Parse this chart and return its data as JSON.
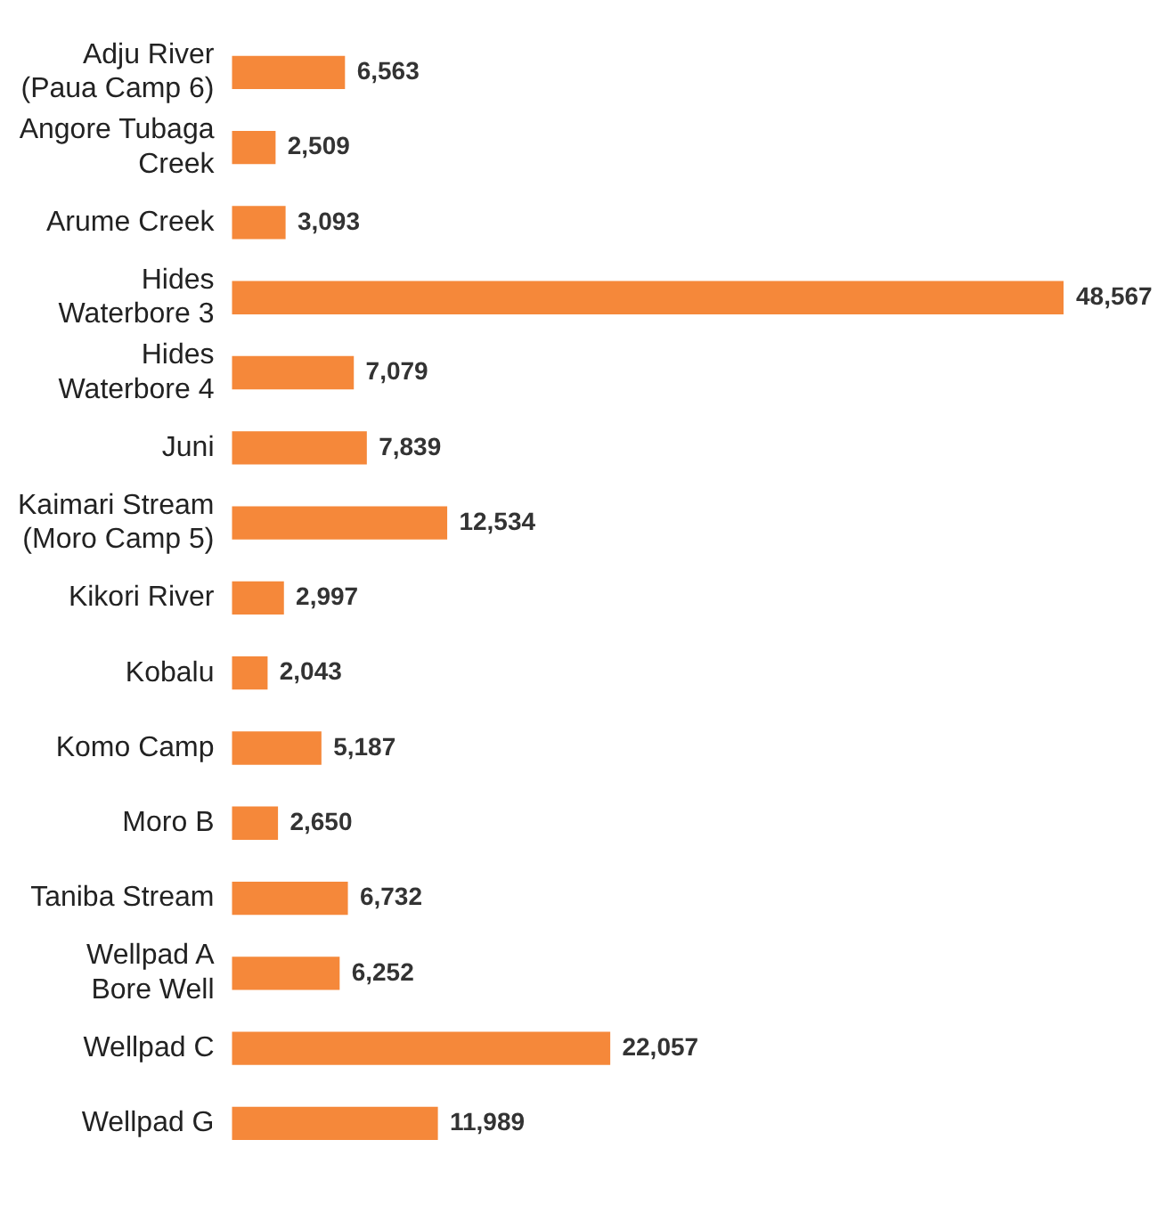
{
  "chart_data": {
    "type": "bar",
    "orientation": "horizontal",
    "categories": [
      "Adju River\n(Paua Camp 6)",
      "Angore Tubaga\nCreek",
      "Arume Creek",
      "Hides\nWaterbore 3",
      "Hides\nWaterbore 4",
      "Juni",
      "Kaimari Stream\n(Moro Camp 5)",
      "Kikori River",
      "Kobalu",
      "Komo Camp",
      "Moro B",
      "Taniba Stream",
      "Wellpad A\nBore Well",
      "Wellpad C",
      "Wellpad G"
    ],
    "values": [
      6563,
      2509,
      3093,
      48567,
      7079,
      7839,
      12534,
      2997,
      2043,
      5187,
      2650,
      6732,
      6252,
      22057,
      11989
    ],
    "value_labels": [
      "6,563",
      "2,509",
      "3,093",
      "48,567",
      "7,079",
      "7,839",
      "12,534",
      "2,997",
      "2,043",
      "5,187",
      "2,650",
      "6,732",
      "6,252",
      "22,057",
      "11,989"
    ],
    "color": "#f5883a",
    "grid": false,
    "legend": false
  }
}
